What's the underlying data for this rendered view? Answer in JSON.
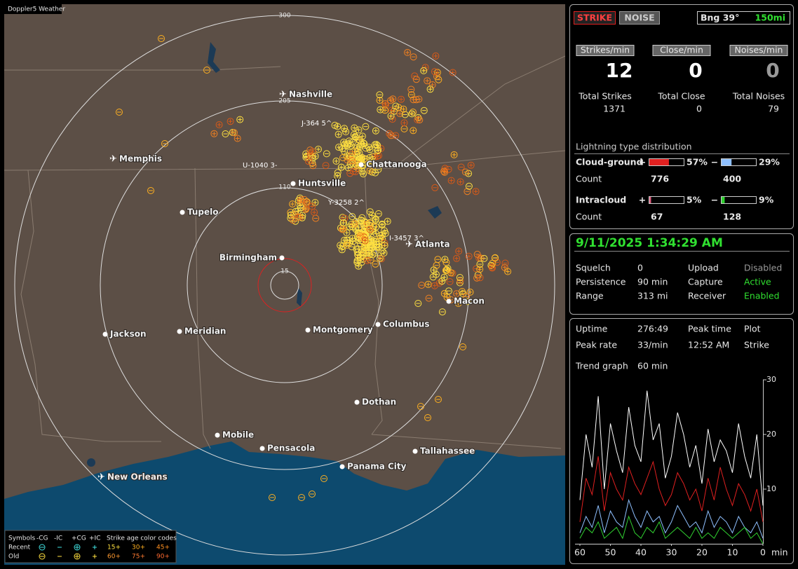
{
  "window_title": "Doppler5 Weather",
  "map": {
    "ring_labels": [
      300,
      205,
      110,
      15
    ],
    "cities": [
      "Nashville",
      "Memphis",
      "Huntsville",
      "Chattanooga",
      "Tupelo",
      "Birmingham",
      "Atlanta",
      "Jackson",
      "Meridian",
      "Montgomery",
      "Columbus",
      "Macon",
      "Dothan",
      "Mobile",
      "Pensacola",
      "Panama City",
      "Tallahassee",
      "New Orleans"
    ],
    "storm_labels": [
      "J-364 5^",
      "U-1040 3-",
      "Y-3258 2^",
      "I-3457 3^"
    ]
  },
  "legend": {
    "symbols_label": "Symbols",
    "symbol_headers": [
      "-CG",
      "-IC",
      "+CG",
      "+IC"
    ],
    "row_labels": [
      "Recent",
      "Old"
    ],
    "age_title": "Strike age color codes",
    "recent_ages": [
      "15+",
      "30+",
      "45+"
    ],
    "old_ages": [
      "60+",
      "75+",
      "90+"
    ]
  },
  "status": {
    "strike_button": "STRIKE",
    "noise_button": "NOISE",
    "bearing": "Bng 39°",
    "range": "150mi"
  },
  "rates": [
    {
      "header": "Strikes/min",
      "value": 12,
      "total_label": "Total Strikes",
      "total": 1371
    },
    {
      "header": "Close/min",
      "value": 0,
      "total_label": "Total Close",
      "total": 0
    },
    {
      "header": "Noises/min",
      "value": 0,
      "total_label": "Total Noises",
      "total": 79
    }
  ],
  "distribution": {
    "title": "Lightning type distribution",
    "count_label": "Count",
    "plus_sign": "+",
    "minus_sign": "−",
    "rows": [
      {
        "name": "Cloud-ground",
        "plus": {
          "value": 57,
          "label": "57%"
        },
        "minus": {
          "value": 29,
          "label": "29%"
        },
        "plus_count": 776,
        "minus_count": 400
      },
      {
        "name": "Intracloud",
        "plus": {
          "value": 5,
          "label": "5%"
        },
        "minus": {
          "value": 9,
          "label": "9%"
        },
        "plus_count": 67,
        "minus_count": 128
      }
    ]
  },
  "status_box": {
    "datetime": "9/11/2025 1:34:29 AM",
    "rows": [
      [
        "Squelch",
        0,
        "Upload",
        "Disabled"
      ],
      [
        "Persistence",
        "90 min",
        "Capture",
        "Active"
      ],
      [
        "Range",
        "313 mi",
        "Receiver",
        "Enabled"
      ]
    ]
  },
  "stats": {
    "rows": [
      [
        "Uptime",
        "276:49",
        "Peak time",
        "Plot"
      ],
      [
        "Peak rate",
        "33/min",
        "12:52 AM",
        "Strike"
      ]
    ],
    "trend_label": "Trend graph",
    "trend_period": "60 min"
  },
  "chart_data": {
    "type": "line",
    "x": [
      60,
      58,
      56,
      54,
      52,
      50,
      48,
      46,
      44,
      42,
      40,
      38,
      36,
      34,
      32,
      30,
      28,
      26,
      24,
      22,
      20,
      18,
      16,
      14,
      12,
      10,
      8,
      6,
      4,
      2,
      0
    ],
    "xlim": [
      60,
      0
    ],
    "xticks": [
      60,
      50,
      40,
      30,
      20,
      10,
      0
    ],
    "x_label": "min",
    "ylim": [
      0,
      30
    ],
    "yticks": [
      10,
      20,
      30
    ],
    "series": [
      {
        "color": "#ffffff",
        "values": [
          8,
          20,
          14,
          27,
          10,
          22,
          17,
          13,
          25,
          18,
          15,
          28,
          19,
          22,
          12,
          16,
          24,
          20,
          14,
          18,
          11,
          21,
          15,
          19,
          17,
          13,
          22,
          16,
          12,
          20,
          7
        ]
      },
      {
        "color": "#e02020",
        "values": [
          4,
          12,
          9,
          16,
          6,
          13,
          10,
          8,
          14,
          11,
          9,
          12,
          15,
          10,
          7,
          9,
          13,
          11,
          8,
          10,
          6,
          12,
          8,
          14,
          10,
          7,
          11,
          9,
          6,
          10,
          4
        ]
      },
      {
        "color": "#8fc0ff",
        "values": [
          2,
          5,
          3,
          7,
          2,
          6,
          4,
          3,
          8,
          5,
          3,
          6,
          4,
          5,
          2,
          4,
          7,
          5,
          3,
          4,
          2,
          6,
          3,
          5,
          4,
          2,
          5,
          3,
          2,
          4,
          1
        ]
      },
      {
        "color": "#30d030",
        "values": [
          1,
          3,
          2,
          4,
          1,
          2,
          3,
          1,
          5,
          2,
          1,
          3,
          2,
          4,
          1,
          2,
          3,
          2,
          1,
          3,
          1,
          2,
          1,
          3,
          2,
          1,
          2,
          3,
          1,
          2,
          0
        ]
      }
    ]
  }
}
